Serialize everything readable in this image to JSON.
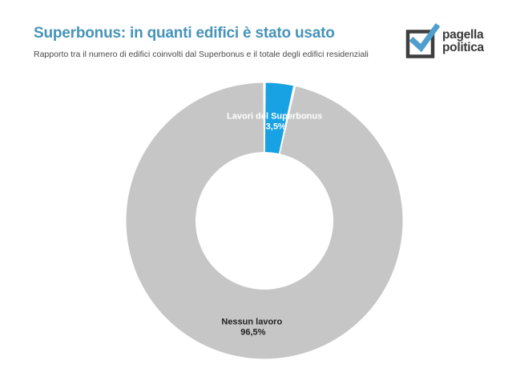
{
  "header": {
    "title": "Superbonus: in quanti edifici è stato usato",
    "subtitle": "Rapporto tra il numero di edifici coinvolti dal Superbonus e il totale degli edifici residenziali"
  },
  "logo": {
    "line1": "pagella",
    "line2": "politica"
  },
  "colors": {
    "title_blue": "#4793BA",
    "accent_blue": "#18A2E3",
    "neutral_gray": "#C6C6C6",
    "logo_dark": "#3E3E3E",
    "logo_check_blue": "#4F9ECE"
  },
  "chart_data": {
    "type": "pie",
    "donut": true,
    "title": "Superbonus: in quanti edifici è stato usato",
    "subtitle": "Rapporto tra il numero di edifici coinvolti dal Superbonus e il totale degli edifici residenziali",
    "start_angle_deg": 0,
    "legend_position": "none",
    "slices": [
      {
        "label": "Lavori del Superbonus",
        "value": 3.5,
        "value_label": "3,5%",
        "color": "#18A2E3",
        "label_color": "#FFFFFF"
      },
      {
        "label": "Nessun lavoro",
        "value": 96.5,
        "value_label": "96,5%",
        "color": "#C6C6C6",
        "label_color": "#222222"
      }
    ]
  }
}
